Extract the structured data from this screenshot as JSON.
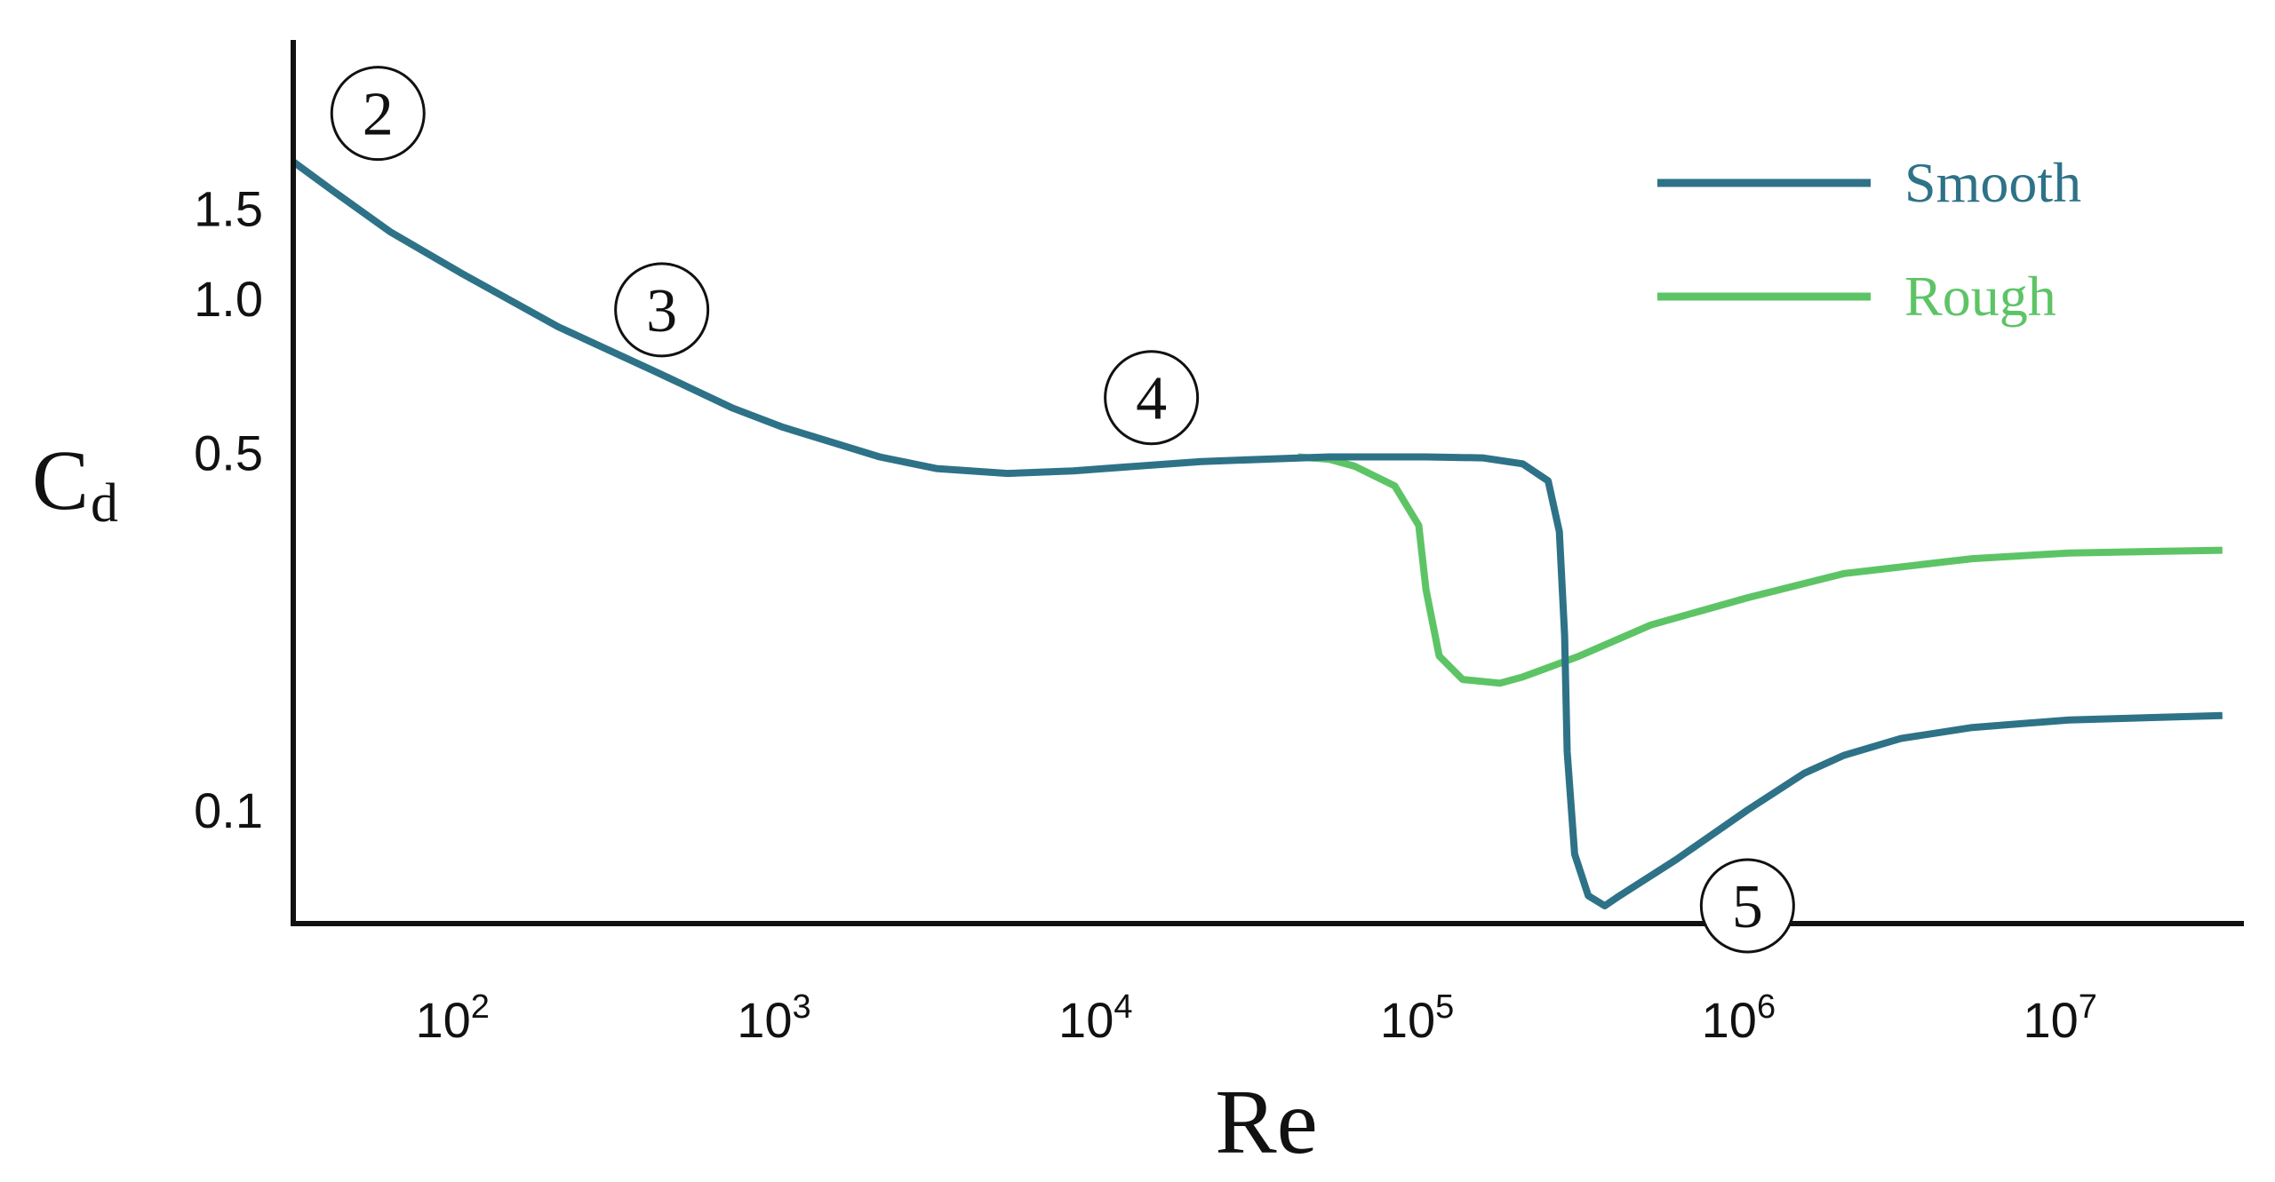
{
  "chart_data": {
    "type": "line",
    "xscale": "log",
    "yscale": "log",
    "xlim": [
      30,
      35000000
    ],
    "ylim": [
      0.06,
      3.2
    ],
    "x_ticks": [
      {
        "value": 100,
        "base": "10",
        "exp": "2"
      },
      {
        "value": 1000,
        "base": "10",
        "exp": "3"
      },
      {
        "value": 10000,
        "base": "10",
        "exp": "4"
      },
      {
        "value": 100000,
        "base": "10",
        "exp": "5"
      },
      {
        "value": 1000000,
        "base": "10",
        "exp": "6"
      },
      {
        "value": 10000000,
        "base": "10",
        "exp": "7"
      }
    ],
    "y_ticks": [
      {
        "value": 1.5,
        "label": "1.5"
      },
      {
        "value": 1.0,
        "label": "1.0"
      },
      {
        "value": 0.5,
        "label": "0.5"
      },
      {
        "value": 0.1,
        "label": "0.1"
      }
    ],
    "xlabel": "Re",
    "ylabel": {
      "main": "C",
      "sub": "d"
    },
    "grid": false,
    "legend_position": "top-right",
    "series": [
      {
        "name": "Smooth",
        "color": "#2e7288",
        "points": [
          [
            30,
            1.85
          ],
          [
            40,
            1.62
          ],
          [
            60,
            1.35
          ],
          [
            100,
            1.12
          ],
          [
            200,
            0.88
          ],
          [
            400,
            0.72
          ],
          [
            700,
            0.61
          ],
          [
            1000,
            0.56
          ],
          [
            2000,
            0.49
          ],
          [
            3000,
            0.465
          ],
          [
            5000,
            0.455
          ],
          [
            8000,
            0.46
          ],
          [
            10000,
            0.465
          ],
          [
            20000,
            0.48
          ],
          [
            50000,
            0.49
          ],
          [
            100000,
            0.49
          ],
          [
            150000,
            0.488
          ],
          [
            200000,
            0.475
          ],
          [
            240000,
            0.44
          ],
          [
            260000,
            0.35
          ],
          [
            270000,
            0.22
          ],
          [
            275000,
            0.13
          ],
          [
            290000,
            0.082
          ],
          [
            320000,
            0.068
          ],
          [
            360000,
            0.065
          ],
          [
            400000,
            0.068
          ],
          [
            600000,
            0.08
          ],
          [
            1000000,
            0.1
          ],
          [
            1500000,
            0.118
          ],
          [
            2000000,
            0.128
          ],
          [
            3000000,
            0.138
          ],
          [
            5000000,
            0.145
          ],
          [
            10000000,
            0.15
          ],
          [
            30000000,
            0.153
          ]
        ]
      },
      {
        "name": "Rough",
        "color": "#5dc466",
        "points": [
          [
            40000,
            0.49
          ],
          [
            50000,
            0.485
          ],
          [
            60000,
            0.47
          ],
          [
            80000,
            0.43
          ],
          [
            95000,
            0.36
          ],
          [
            100000,
            0.27
          ],
          [
            110000,
            0.2
          ],
          [
            130000,
            0.18
          ],
          [
            170000,
            0.177
          ],
          [
            200000,
            0.182
          ],
          [
            300000,
            0.2
          ],
          [
            500000,
            0.23
          ],
          [
            1000000,
            0.26
          ],
          [
            2000000,
            0.29
          ],
          [
            5000000,
            0.31
          ],
          [
            10000000,
            0.318
          ],
          [
            30000000,
            0.322
          ]
        ]
      }
    ],
    "annotations": [
      {
        "text": "2",
        "x": 55,
        "y": 2.3
      },
      {
        "text": "3",
        "x": 420,
        "y": 0.95
      },
      {
        "text": "4",
        "x": 14000,
        "y": 0.64
      },
      {
        "text": "5",
        "x": 1000000,
        "y": 0.065
      }
    ]
  }
}
